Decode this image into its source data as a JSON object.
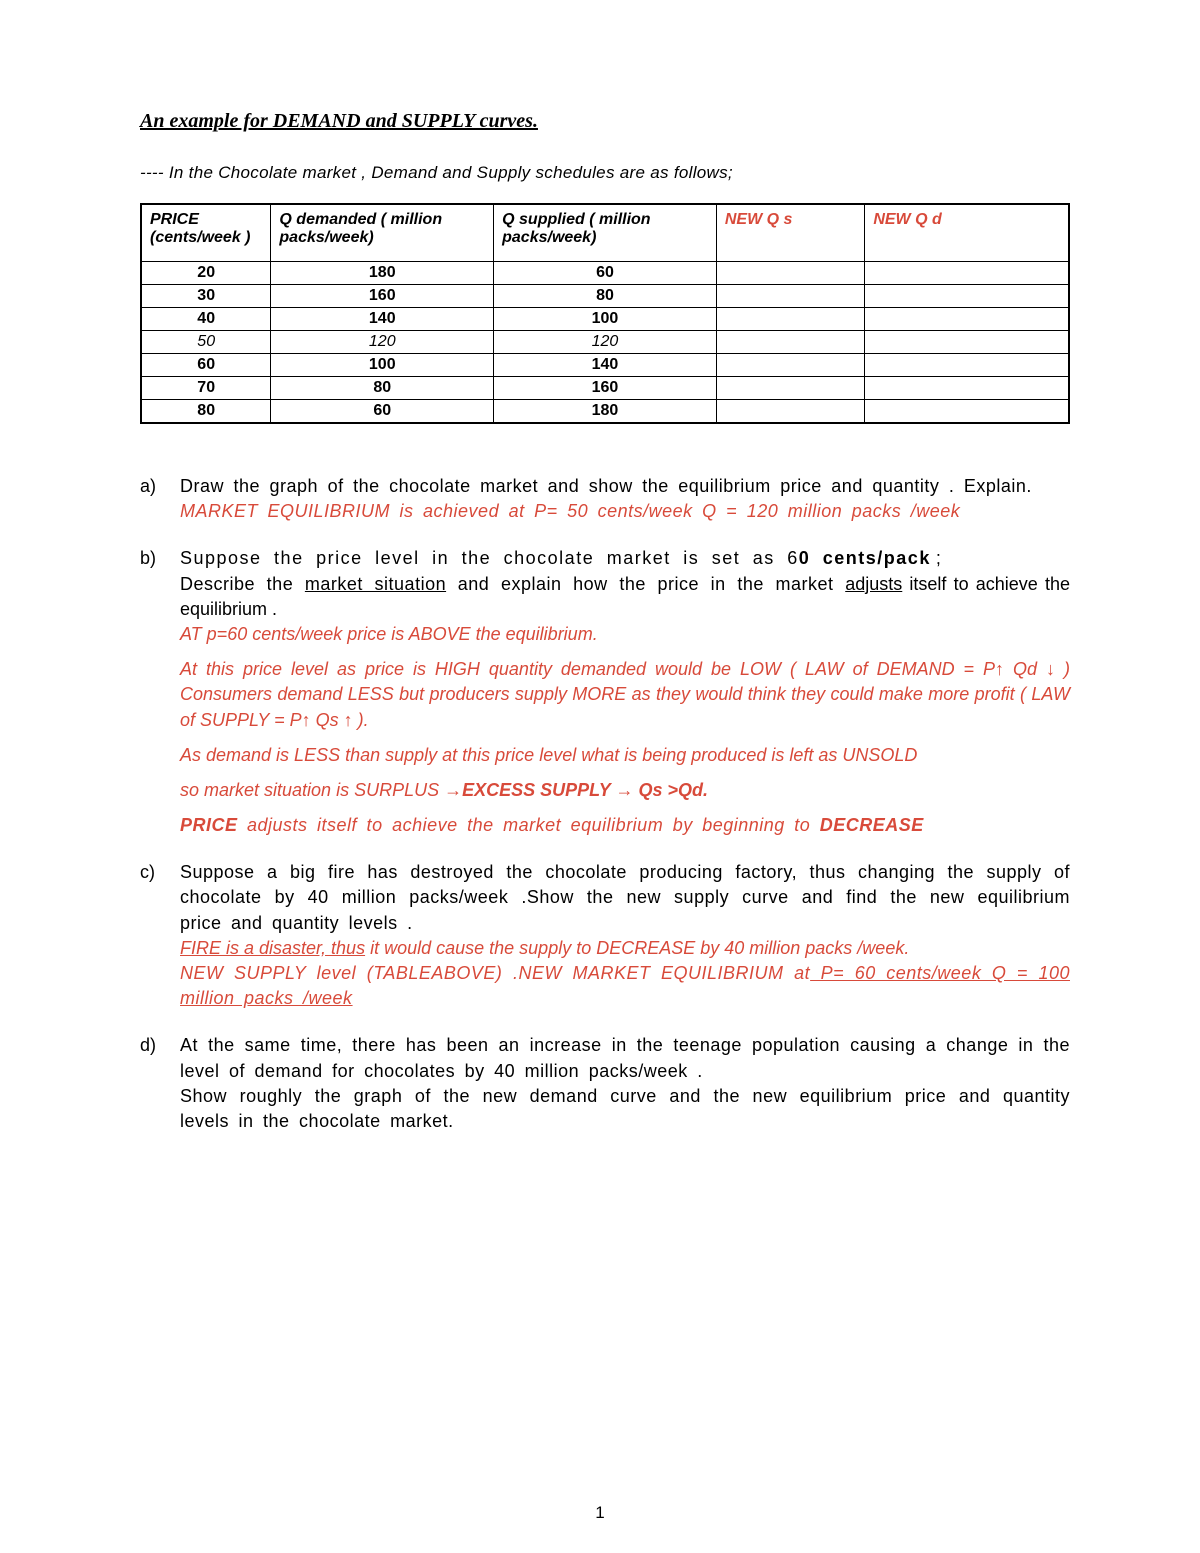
{
  "title": "An example for DEMAND and SUPPLY   curves.",
  "intro": "---- In   the Chocolate   market   ,   Demand and Supply schedules are as follows;",
  "table": {
    "columns": [
      "PRICE (cents/week )",
      "Q demanded ( million packs/week)",
      "Q supplied ( million packs/week)",
      "NEW Q s",
      "NEW Q d"
    ],
    "col_widths": [
      "14%",
      "24%",
      "24%",
      "16%",
      "22%"
    ],
    "red_header_indices": [
      3,
      4
    ],
    "rows": [
      {
        "cells": [
          "20",
          "180",
          "60",
          "",
          ""
        ],
        "eq": false
      },
      {
        "cells": [
          "30",
          "160",
          "80",
          "",
          ""
        ],
        "eq": false
      },
      {
        "cells": [
          "40",
          "140",
          "100",
          "",
          ""
        ],
        "eq": false
      },
      {
        "cells": [
          "50",
          "120",
          "120",
          "",
          ""
        ],
        "eq": true
      },
      {
        "cells": [
          "60",
          "100",
          "140",
          "",
          ""
        ],
        "eq": false
      },
      {
        "cells": [
          "70",
          "80",
          "160",
          "",
          ""
        ],
        "eq": false
      },
      {
        "cells": [
          "80",
          "60",
          "180",
          "",
          ""
        ],
        "eq": false
      }
    ]
  },
  "questions": {
    "a": {
      "q": "Draw the graph of the  chocolate  market  and  show  the  equilibrium  price  and quantity . Explain.",
      "ans1": "MARKET  EQUILIBRIUM  is  achieved  at  P=  50  cents/week         Q  =  120  million packs /week"
    },
    "b": {
      "q_part1": "Suppose   the   price   level     in   the   chocolate   market   is   set   as    6",
      "q_part1_bold": "0 cents/pack",
      "q_part1_tail": " ;",
      "q_part2_pre": "Describe  the  ",
      "q_part2_u": "market  situation",
      "q_part2_mid": "  and   explain  how  the price   in  the  market ",
      "q_part2_u2": "adjusts",
      "q_part2_tail": "  itself to achieve the equilibrium   .",
      "ans1": "AT p=60 cents/week price is ABOVE the equilibrium.",
      "ans2": " At this price level as  price is HIGH quantity demanded would be LOW ( LAW of DEMAND =  P↑ Qd ↓ )   Consumers demand LESS   but producers supply MORE as they would think they could make more profit       ( LAW of SUPPLY  = P↑  Qs ↑ ).",
      "ans3": " As demand is LESS than supply at this price level    what is being produced is left as UNSOLD",
      "ans4_pre": "so market situation is SURPLUS ",
      "ans4_bold": "→EXCESS SUPPLY    → Qs >Qd.",
      "ans5_pre": "PRICE",
      "ans5_mid": "  adjusts  itself  to  achieve  the  market  equilibrium  by  beginning  to ",
      "ans5_bold": "DECREASE"
    },
    "c": {
      "q": "Suppose  a  big  fire has  destroyed   the   chocolate producing  factory, thus changing  the supply of chocolate    by  40 million packs/week .Show  the new supply curve  and find  the  new equilibrium price and  quantity levels .",
      "ans1_u": "FIRE is a disaster, thus",
      "ans1_tail": " it would cause the supply to DECREASE by 40 million packs /week.",
      "ans2_pre": "NEW  SUPPLY  level      (TABLEABOVE)  .NEW  MARKET  EQUILIBRIUM  at",
      "ans2_u": "  P=  60 cents/week     Q = 100 million packs /week"
    },
    "d": {
      "q1": "At the same time, there has  been  an  increase  in  the   teenage  population causing  a change in the   level of demand for chocolates  by 40 million packs/week .",
      "q2": "Show  roughly   the  graph of   the  new demand  curve  and    the  new equilibrium   price and  quantity levels in the chocolate market."
    }
  },
  "page_number": "1",
  "colors": {
    "answer_red": "#d84a3a",
    "text": "#000000",
    "background": "#ffffff"
  }
}
